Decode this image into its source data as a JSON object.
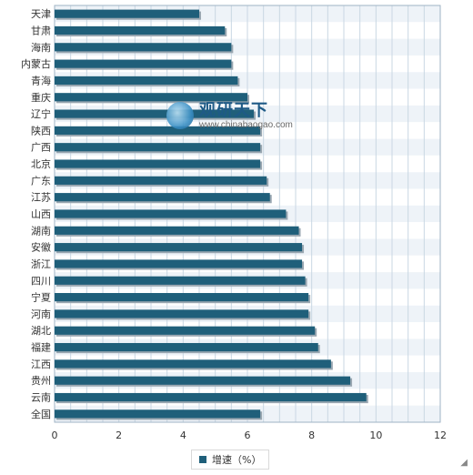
{
  "chart_data": {
    "type": "bar",
    "orientation": "horizontal",
    "categories": [
      "天津",
      "甘肃",
      "海南",
      "内蒙古",
      "青海",
      "重庆",
      "辽宁",
      "陕西",
      "广西",
      "北京",
      "广东",
      "江苏",
      "山西",
      "湖南",
      "安徽",
      "浙江",
      "四川",
      "宁夏",
      "河南",
      "湖北",
      "福建",
      "江西",
      "贵州",
      "云南",
      "全国"
    ],
    "series": [
      {
        "name": "增速（%）",
        "values": [
          4.5,
          5.3,
          5.5,
          5.5,
          5.7,
          6.0,
          6.2,
          6.4,
          6.4,
          6.4,
          6.6,
          6.7,
          7.2,
          7.6,
          7.7,
          7.7,
          7.8,
          7.9,
          7.9,
          8.1,
          8.2,
          8.6,
          9.2,
          9.7,
          6.4
        ]
      }
    ],
    "xlim": [
      0,
      12
    ],
    "xticks": [
      "0",
      "2",
      "4",
      "6",
      "8",
      "10",
      "12"
    ],
    "grid": true,
    "legend_position": "bottom",
    "colors": {
      "bar": "#1f5f7a",
      "grid": "#c9d7e3",
      "plot_bg": "#ffffff",
      "band_bg": "#eef3f8"
    }
  },
  "legend": {
    "label": "增速（%）"
  },
  "watermark": {
    "title": "观研天下",
    "url": "www.chinabaogao.com"
  },
  "corner_mark": "◢"
}
